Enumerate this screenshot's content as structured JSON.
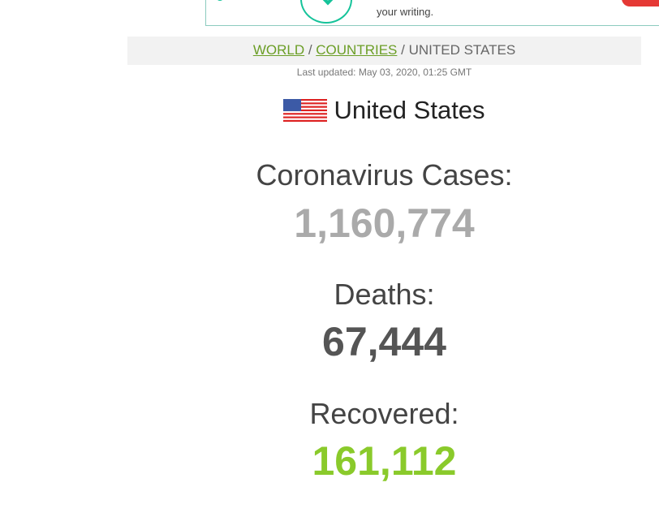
{
  "ad": {
    "text": "your writing."
  },
  "breadcrumb": {
    "world": "WORLD",
    "countries": "COUNTRIES",
    "current": "UNITED STATES",
    "sep": " / "
  },
  "last_updated": "Last updated: May 03, 2020, 01:25 GMT",
  "country": {
    "name": "United States",
    "flag_icon": "us-flag-icon"
  },
  "stats": [
    {
      "label": "Coronavirus Cases:",
      "value": "1,160,774",
      "color": "#aaaaaa"
    },
    {
      "label": "Deaths:",
      "value": "67,444",
      "color": "#555555"
    },
    {
      "label": "Recovered:",
      "value": "161,112",
      "color": "#8aca2b"
    }
  ]
}
